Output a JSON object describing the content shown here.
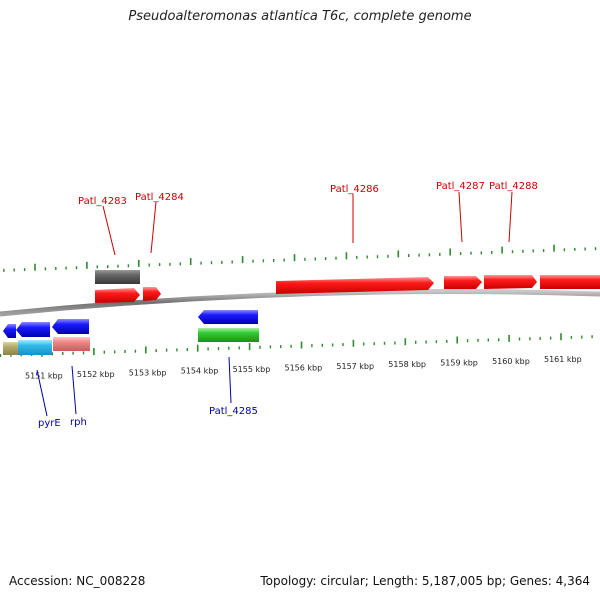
{
  "title": "Pseudoalteromonas atlantica T6c, complete genome",
  "footer": {
    "accession": "Accession: NC_008228",
    "stats": "Topology: circular; Length: 5,187,005 bp; Genes: 4,364"
  },
  "colors": {
    "ruler_ticks": "#2e8b2e",
    "backbone": "#808080",
    "forward_gene": "#ff0000",
    "reverse_gene": "#0000ee",
    "forward_label": "#cc0000",
    "reverse_label": "#0000aa",
    "pseudo_gene": "#555555",
    "rrna_gene": "#33cc33",
    "teal_gene": "#33bbee",
    "olive_gene": "#b5ad6b",
    "pink_gene": "#ee8888"
  },
  "ruler": {
    "unit": "kbp",
    "ticks": [
      {
        "label": "5151 kbp"
      },
      {
        "label": "5152 kbp"
      },
      {
        "label": "5153 kbp"
      },
      {
        "label": "5154 kbp"
      },
      {
        "label": "5155 kbp"
      },
      {
        "label": "5156 kbp"
      },
      {
        "label": "5157 kbp"
      },
      {
        "label": "5158 kbp"
      },
      {
        "label": "5159 kbp"
      },
      {
        "label": "5160 kbp"
      },
      {
        "label": "5161 kbp"
      }
    ]
  },
  "gene_labels": {
    "top": [
      {
        "text": "Patl_4283"
      },
      {
        "text": "Patl_4284"
      },
      {
        "text": "Patl_4286"
      },
      {
        "text": "Patl_4287"
      },
      {
        "text": "Patl_4288"
      }
    ],
    "bottom": [
      {
        "text": "pyrE"
      },
      {
        "text": "rph"
      },
      {
        "text": "Patl_4285"
      }
    ]
  }
}
